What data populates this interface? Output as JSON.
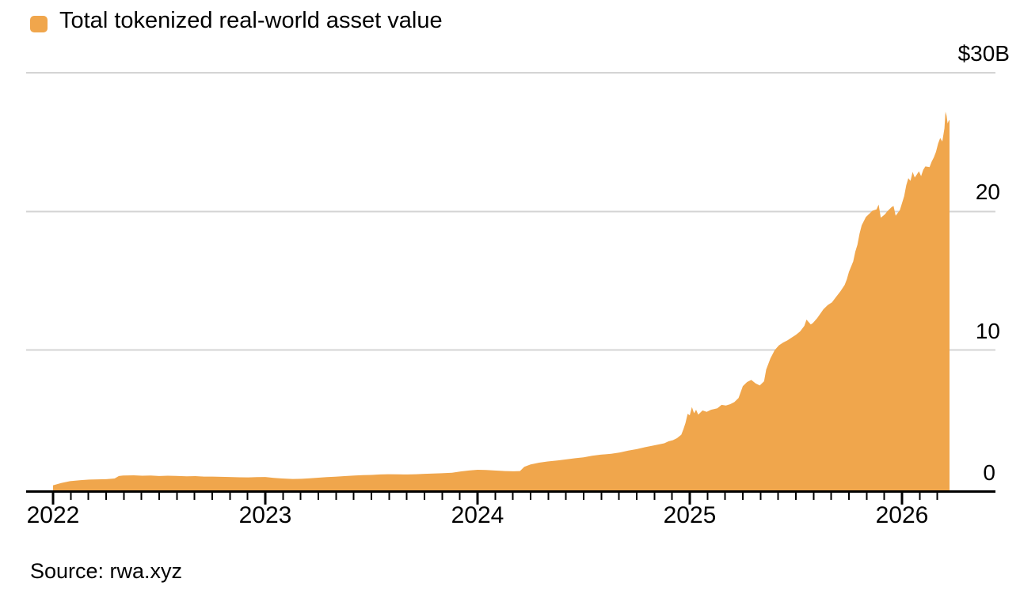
{
  "legend": {
    "label": "Total tokenized real-world asset value",
    "swatch_icon": "rounded-square"
  },
  "y_axis": {
    "labels": [
      "$30B",
      "20",
      "10",
      "0"
    ]
  },
  "x_axis": {
    "year_labels": [
      "2022",
      "2023",
      "2024",
      "2025",
      "2026"
    ]
  },
  "source": {
    "text": "Source: rwa.xyz"
  },
  "colors": {
    "area": "#F0A64C",
    "gridline": "#D4D4D4",
    "axis": "#000000",
    "text": "#000000"
  },
  "chart_data": {
    "type": "area",
    "title": "Total tokenized real-world asset value",
    "unit": "billions USD",
    "ylabel": "",
    "xlabel": "",
    "ylim": [
      0,
      30
    ],
    "y_gridline_values": [
      30,
      20,
      10
    ],
    "y_tick_labels": [
      "$30B",
      "20",
      "10",
      "0"
    ],
    "x_tick_years": [
      2022,
      2023,
      2024,
      2025,
      2026
    ],
    "x_minor_tick_interval": "month",
    "x_range_decimal_years": [
      2022.0,
      2026.224
    ],
    "legend_position": "top-left",
    "grid": "horizontal",
    "series": [
      {
        "name": "Total tokenized real-world asset value",
        "points_format": [
          "decimal_year",
          "value_billion_usd"
        ],
        "points": [
          [
            2022.0,
            0.25
          ],
          [
            2022.04,
            0.42
          ],
          [
            2022.08,
            0.55
          ],
          [
            2022.13,
            0.62
          ],
          [
            2022.17,
            0.66
          ],
          [
            2022.21,
            0.68
          ],
          [
            2022.25,
            0.69
          ],
          [
            2022.29,
            0.74
          ],
          [
            2022.31,
            0.92
          ],
          [
            2022.33,
            0.96
          ],
          [
            2022.38,
            0.97
          ],
          [
            2022.42,
            0.94
          ],
          [
            2022.46,
            0.96
          ],
          [
            2022.5,
            0.92
          ],
          [
            2022.54,
            0.94
          ],
          [
            2022.58,
            0.93
          ],
          [
            2022.63,
            0.9
          ],
          [
            2022.67,
            0.91
          ],
          [
            2022.71,
            0.88
          ],
          [
            2022.75,
            0.88
          ],
          [
            2022.79,
            0.86
          ],
          [
            2022.83,
            0.85
          ],
          [
            2022.88,
            0.83
          ],
          [
            2022.92,
            0.82
          ],
          [
            2022.96,
            0.84
          ],
          [
            2023.0,
            0.85
          ],
          [
            2023.04,
            0.78
          ],
          [
            2023.08,
            0.74
          ],
          [
            2023.13,
            0.71
          ],
          [
            2023.17,
            0.72
          ],
          [
            2023.21,
            0.76
          ],
          [
            2023.25,
            0.8
          ],
          [
            2023.29,
            0.84
          ],
          [
            2023.33,
            0.87
          ],
          [
            2023.38,
            0.92
          ],
          [
            2023.42,
            0.95
          ],
          [
            2023.46,
            0.98
          ],
          [
            2023.5,
            1.0
          ],
          [
            2023.54,
            1.03
          ],
          [
            2023.58,
            1.05
          ],
          [
            2023.63,
            1.04
          ],
          [
            2023.67,
            1.03
          ],
          [
            2023.71,
            1.05
          ],
          [
            2023.75,
            1.08
          ],
          [
            2023.79,
            1.1
          ],
          [
            2023.83,
            1.12
          ],
          [
            2023.88,
            1.16
          ],
          [
            2023.92,
            1.25
          ],
          [
            2023.96,
            1.32
          ],
          [
            2024.0,
            1.37
          ],
          [
            2024.04,
            1.35
          ],
          [
            2024.08,
            1.32
          ],
          [
            2024.13,
            1.28
          ],
          [
            2024.17,
            1.26
          ],
          [
            2024.2,
            1.28
          ],
          [
            2024.22,
            1.58
          ],
          [
            2024.25,
            1.75
          ],
          [
            2024.29,
            1.88
          ],
          [
            2024.33,
            1.97
          ],
          [
            2024.38,
            2.05
          ],
          [
            2024.42,
            2.12
          ],
          [
            2024.46,
            2.2
          ],
          [
            2024.5,
            2.27
          ],
          [
            2024.54,
            2.38
          ],
          [
            2024.58,
            2.46
          ],
          [
            2024.63,
            2.52
          ],
          [
            2024.67,
            2.62
          ],
          [
            2024.71,
            2.75
          ],
          [
            2024.75,
            2.86
          ],
          [
            2024.79,
            3.0
          ],
          [
            2024.83,
            3.12
          ],
          [
            2024.88,
            3.28
          ],
          [
            2024.9,
            3.42
          ],
          [
            2024.92,
            3.5
          ],
          [
            2024.94,
            3.65
          ],
          [
            2024.96,
            3.9
          ],
          [
            2024.97,
            4.3
          ],
          [
            2024.98,
            4.75
          ],
          [
            2024.99,
            5.4
          ],
          [
            2025.0,
            5.3
          ],
          [
            2025.01,
            5.9
          ],
          [
            2025.02,
            5.45
          ],
          [
            2025.03,
            5.7
          ],
          [
            2025.04,
            5.35
          ],
          [
            2025.06,
            5.65
          ],
          [
            2025.08,
            5.55
          ],
          [
            2025.1,
            5.7
          ],
          [
            2025.13,
            5.8
          ],
          [
            2025.15,
            6.05
          ],
          [
            2025.17,
            6.0
          ],
          [
            2025.19,
            6.1
          ],
          [
            2025.21,
            6.25
          ],
          [
            2025.23,
            6.55
          ],
          [
            2025.25,
            7.4
          ],
          [
            2025.27,
            7.7
          ],
          [
            2025.29,
            7.85
          ],
          [
            2025.31,
            7.6
          ],
          [
            2025.33,
            7.45
          ],
          [
            2025.35,
            7.75
          ],
          [
            2025.36,
            8.6
          ],
          [
            2025.38,
            9.4
          ],
          [
            2025.4,
            10.0
          ],
          [
            2025.42,
            10.35
          ],
          [
            2025.44,
            10.55
          ],
          [
            2025.46,
            10.7
          ],
          [
            2025.48,
            10.9
          ],
          [
            2025.5,
            11.1
          ],
          [
            2025.52,
            11.35
          ],
          [
            2025.54,
            11.75
          ],
          [
            2025.55,
            12.2
          ],
          [
            2025.57,
            11.85
          ],
          [
            2025.58,
            11.95
          ],
          [
            2025.6,
            12.3
          ],
          [
            2025.63,
            12.95
          ],
          [
            2025.65,
            13.25
          ],
          [
            2025.67,
            13.45
          ],
          [
            2025.69,
            13.85
          ],
          [
            2025.71,
            14.25
          ],
          [
            2025.73,
            14.7
          ],
          [
            2025.74,
            15.1
          ],
          [
            2025.75,
            15.65
          ],
          [
            2025.77,
            16.4
          ],
          [
            2025.78,
            17.1
          ],
          [
            2025.79,
            17.6
          ],
          [
            2025.8,
            18.4
          ],
          [
            2025.81,
            19.0
          ],
          [
            2025.83,
            19.6
          ],
          [
            2025.85,
            19.9
          ],
          [
            2025.86,
            20.05
          ],
          [
            2025.88,
            20.15
          ],
          [
            2025.89,
            20.5
          ],
          [
            2025.9,
            19.55
          ],
          [
            2025.92,
            19.8
          ],
          [
            2025.93,
            20.0
          ],
          [
            2025.95,
            20.3
          ],
          [
            2025.96,
            20.4
          ],
          [
            2025.97,
            19.7
          ],
          [
            2025.99,
            20.1
          ],
          [
            2026.0,
            20.6
          ],
          [
            2026.01,
            21.1
          ],
          [
            2026.02,
            21.9
          ],
          [
            2026.03,
            22.4
          ],
          [
            2026.04,
            22.2
          ],
          [
            2026.05,
            22.85
          ],
          [
            2026.06,
            22.45
          ],
          [
            2026.08,
            22.9
          ],
          [
            2026.09,
            22.55
          ],
          [
            2026.1,
            23.0
          ],
          [
            2026.11,
            23.25
          ],
          [
            2026.13,
            23.2
          ],
          [
            2026.14,
            23.6
          ],
          [
            2026.15,
            23.9
          ],
          [
            2026.16,
            24.3
          ],
          [
            2026.17,
            24.9
          ],
          [
            2026.18,
            25.3
          ],
          [
            2026.19,
            25.05
          ],
          [
            2026.2,
            26.0
          ],
          [
            2026.205,
            27.2
          ],
          [
            2026.21,
            26.9
          ],
          [
            2026.215,
            26.35
          ],
          [
            2026.22,
            26.55
          ],
          [
            2026.224,
            26.6
          ]
        ]
      }
    ]
  }
}
